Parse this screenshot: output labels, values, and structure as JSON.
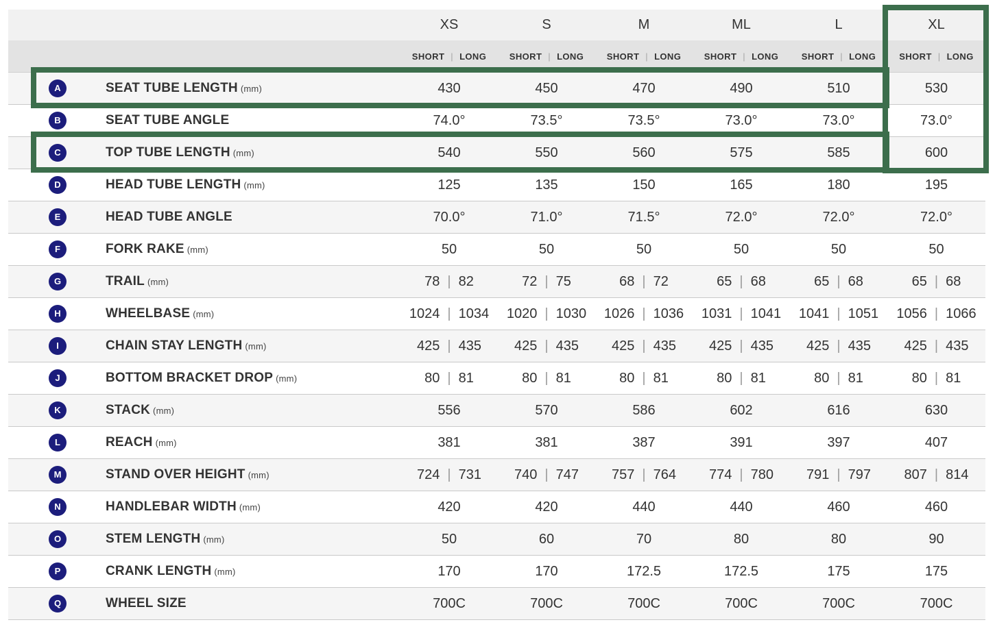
{
  "sizes": [
    "XS",
    "S",
    "M",
    "ML",
    "L",
    "XL"
  ],
  "sub_labels": {
    "short": "SHORT",
    "long": "LONG",
    "separator": "|"
  },
  "rows": [
    {
      "letter": "A",
      "label": "SEAT TUBE LENGTH",
      "unit": "(mm)",
      "values": [
        [
          "430"
        ],
        [
          "450"
        ],
        [
          "470"
        ],
        [
          "490"
        ],
        [
          "510"
        ],
        [
          "530"
        ]
      ]
    },
    {
      "letter": "B",
      "label": "SEAT TUBE ANGLE",
      "unit": "",
      "values": [
        [
          "74.0°"
        ],
        [
          "73.5°"
        ],
        [
          "73.5°"
        ],
        [
          "73.0°"
        ],
        [
          "73.0°"
        ],
        [
          "73.0°"
        ]
      ]
    },
    {
      "letter": "C",
      "label": "TOP TUBE LENGTH",
      "unit": "(mm)",
      "values": [
        [
          "540"
        ],
        [
          "550"
        ],
        [
          "560"
        ],
        [
          "575"
        ],
        [
          "585"
        ],
        [
          "600"
        ]
      ]
    },
    {
      "letter": "D",
      "label": "HEAD TUBE LENGTH",
      "unit": "(mm)",
      "values": [
        [
          "125"
        ],
        [
          "135"
        ],
        [
          "150"
        ],
        [
          "165"
        ],
        [
          "180"
        ],
        [
          "195"
        ]
      ]
    },
    {
      "letter": "E",
      "label": "HEAD TUBE ANGLE",
      "unit": "",
      "values": [
        [
          "70.0°"
        ],
        [
          "71.0°"
        ],
        [
          "71.5°"
        ],
        [
          "72.0°"
        ],
        [
          "72.0°"
        ],
        [
          "72.0°"
        ]
      ]
    },
    {
      "letter": "F",
      "label": "FORK RAKE",
      "unit": "(mm)",
      "values": [
        [
          "50"
        ],
        [
          "50"
        ],
        [
          "50"
        ],
        [
          "50"
        ],
        [
          "50"
        ],
        [
          "50"
        ]
      ]
    },
    {
      "letter": "G",
      "label": "TRAIL",
      "unit": "(mm)",
      "values": [
        [
          "78",
          "82"
        ],
        [
          "72",
          "75"
        ],
        [
          "68",
          "72"
        ],
        [
          "65",
          "68"
        ],
        [
          "65",
          "68"
        ],
        [
          "65",
          "68"
        ]
      ]
    },
    {
      "letter": "H",
      "label": "WHEELBASE",
      "unit": "(mm)",
      "values": [
        [
          "1024",
          "1034"
        ],
        [
          "1020",
          "1030"
        ],
        [
          "1026",
          "1036"
        ],
        [
          "1031",
          "1041"
        ],
        [
          "1041",
          "1051"
        ],
        [
          "1056",
          "1066"
        ]
      ]
    },
    {
      "letter": "I",
      "label": "CHAIN STAY LENGTH",
      "unit": "(mm)",
      "values": [
        [
          "425",
          "435"
        ],
        [
          "425",
          "435"
        ],
        [
          "425",
          "435"
        ],
        [
          "425",
          "435"
        ],
        [
          "425",
          "435"
        ],
        [
          "425",
          "435"
        ]
      ]
    },
    {
      "letter": "J",
      "label": "BOTTOM BRACKET DROP",
      "unit": "(mm)",
      "values": [
        [
          "80",
          "81"
        ],
        [
          "80",
          "81"
        ],
        [
          "80",
          "81"
        ],
        [
          "80",
          "81"
        ],
        [
          "80",
          "81"
        ],
        [
          "80",
          "81"
        ]
      ]
    },
    {
      "letter": "K",
      "label": "STACK",
      "unit": "(mm)",
      "values": [
        [
          "556"
        ],
        [
          "570"
        ],
        [
          "586"
        ],
        [
          "602"
        ],
        [
          "616"
        ],
        [
          "630"
        ]
      ]
    },
    {
      "letter": "L",
      "label": "REACH",
      "unit": "(mm)",
      "values": [
        [
          "381"
        ],
        [
          "381"
        ],
        [
          "387"
        ],
        [
          "391"
        ],
        [
          "397"
        ],
        [
          "407"
        ]
      ]
    },
    {
      "letter": "M",
      "label": "STAND OVER HEIGHT",
      "unit": "(mm)",
      "values": [
        [
          "724",
          "731"
        ],
        [
          "740",
          "747"
        ],
        [
          "757",
          "764"
        ],
        [
          "774",
          "780"
        ],
        [
          "791",
          "797"
        ],
        [
          "807",
          "814"
        ]
      ]
    },
    {
      "letter": "N",
      "label": "HANDLEBAR WIDTH",
      "unit": "(mm)",
      "values": [
        [
          "420"
        ],
        [
          "420"
        ],
        [
          "440"
        ],
        [
          "440"
        ],
        [
          "460"
        ],
        [
          "460"
        ]
      ]
    },
    {
      "letter": "O",
      "label": "STEM LENGTH",
      "unit": "(mm)",
      "values": [
        [
          "50"
        ],
        [
          "60"
        ],
        [
          "70"
        ],
        [
          "80"
        ],
        [
          "80"
        ],
        [
          "90"
        ]
      ]
    },
    {
      "letter": "P",
      "label": "CRANK LENGTH",
      "unit": "(mm)",
      "values": [
        [
          "170"
        ],
        [
          "170"
        ],
        [
          "172.5"
        ],
        [
          "172.5"
        ],
        [
          "175"
        ],
        [
          "175"
        ]
      ]
    },
    {
      "letter": "Q",
      "label": "WHEEL SIZE",
      "unit": "",
      "values": [
        [
          "700C"
        ],
        [
          "700C"
        ],
        [
          "700C"
        ],
        [
          "700C"
        ],
        [
          "700C"
        ],
        [
          "700C"
        ]
      ]
    }
  ],
  "highlight": {
    "color": "#3c6e4c",
    "rows": [
      "A",
      "C"
    ],
    "column": "XL"
  },
  "colors": {
    "badge": "#1c1d7c",
    "header_top": "#f1f1f1",
    "header_sub": "#e3e3e3",
    "row_alt": "#f5f5f5"
  }
}
